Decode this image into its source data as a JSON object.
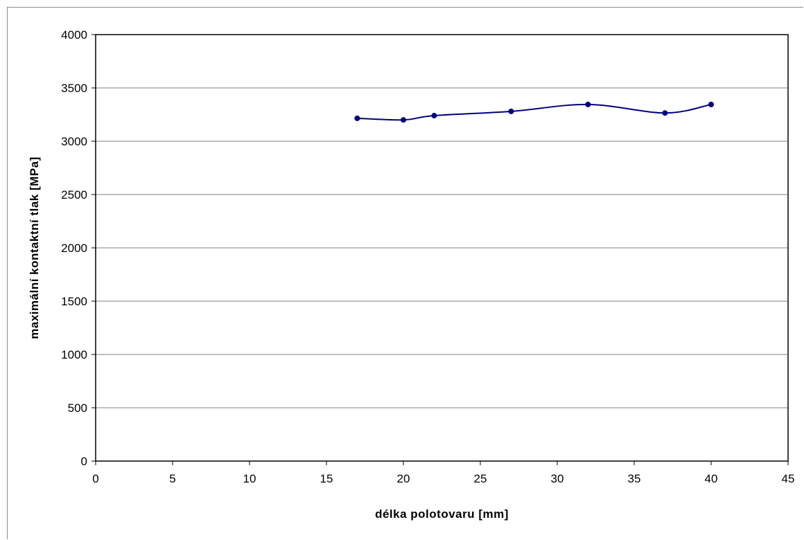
{
  "chart_data": {
    "type": "line",
    "title": "",
    "xlabel": "délka polotovaru [mm]",
    "ylabel": "maximální kontaktní tlak [MPa]",
    "xlim": [
      0,
      45
    ],
    "ylim": [
      0,
      4000
    ],
    "x_ticks": [
      "0",
      "5",
      "10",
      "15",
      "20",
      "25",
      "30",
      "35",
      "40",
      "45"
    ],
    "y_ticks": [
      "0",
      "500",
      "1000",
      "1500",
      "2000",
      "2500",
      "3000",
      "3500",
      "4000"
    ],
    "grid": "horizontal major gridlines",
    "legend": "none",
    "series": [
      {
        "x": [
          17,
          20,
          22,
          27,
          32,
          37,
          40
        ],
        "y": [
          3215,
          3200,
          3240,
          3280,
          3345,
          3265,
          3345
        ],
        "color": "#000080",
        "marker": "circle",
        "smoothed": true
      }
    ]
  }
}
